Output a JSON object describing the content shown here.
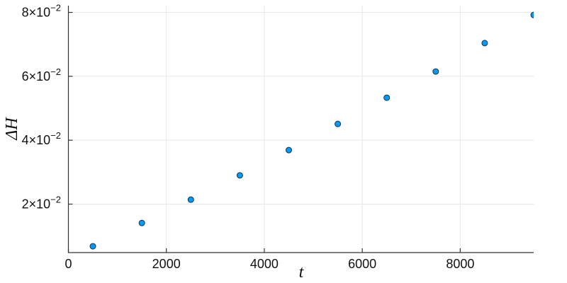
{
  "chart_data": {
    "type": "scatter",
    "title": "",
    "xlabel": "t",
    "ylabel": "ΔH",
    "x": [
      500,
      1500,
      2500,
      3500,
      4500,
      5500,
      6500,
      7500,
      8500,
      9500
    ],
    "y": [
      0.0068,
      0.0141,
      0.0214,
      0.029,
      0.0369,
      0.0451,
      0.0533,
      0.0615,
      0.0704,
      0.0792
    ],
    "xlim": [
      0,
      9500
    ],
    "ylim": [
      0.00483,
      0.08211
    ],
    "xticks": {
      "values": [
        0,
        2000,
        4000,
        6000,
        8000
      ],
      "labels": [
        "0",
        "2000",
        "4000",
        "6000",
        "8000"
      ]
    },
    "yticks": {
      "values": [
        0.02,
        0.04,
        0.06,
        0.08
      ],
      "labels": [
        {
          "base": "2×10",
          "sup": "−2"
        },
        {
          "base": "4×10",
          "sup": "−2"
        },
        {
          "base": "6×10",
          "sup": "−2"
        },
        {
          "base": "8×10",
          "sup": "−2"
        }
      ]
    },
    "grid": true,
    "legend": "none",
    "marker": {
      "shape": "circle",
      "radius": 4,
      "fill": "#009AF9",
      "stroke": "#16344A"
    },
    "colors": {
      "axis": "#333333",
      "grid": "#E7E7E7",
      "tick_text": "#111111",
      "background": "#FFFFFF"
    }
  }
}
